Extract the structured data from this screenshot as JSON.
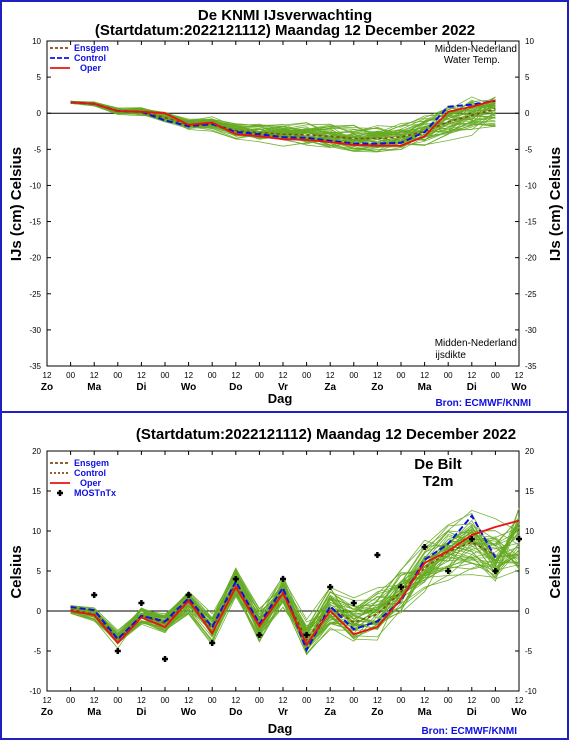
{
  "colors": {
    "frame": "#2020c0",
    "ensemble_member": "#66aa22",
    "ensgem": "#8b4513",
    "control": "#1010e0",
    "oper": "#ee1111",
    "mos": "#000000",
    "legend_text": "#1010e0",
    "source_text": "#1010e0"
  },
  "chart_data": [
    {
      "type": "line",
      "title": "De KNMI IJsverwachting",
      "subtitle": "(Startdatum:2022121112)  Maandag 12 December 2022",
      "xlabel": "Dag",
      "ylabel_left": "IJs (cm)  Celsius",
      "ylabel_right": "IJs (cm)  Celsius",
      "ylim": [
        -35,
        10
      ],
      "yticks": [
        10,
        5,
        0,
        -5,
        -10,
        -15,
        -20,
        -25,
        -30,
        -35
      ],
      "x_hours": [
        0,
        12,
        24,
        36,
        48,
        60,
        72,
        84,
        96,
        108,
        120,
        132,
        144,
        156,
        168,
        180,
        192,
        204,
        216,
        228
      ],
      "xtick_labels": [
        "12",
        "00",
        "12",
        "00",
        "12",
        "00",
        "12",
        "00",
        "12",
        "00",
        "12",
        "00",
        "12",
        "00",
        "12",
        "00",
        "12",
        "00",
        "12",
        "00",
        "12"
      ],
      "day_labels": [
        "Zo",
        "Ma",
        "Di",
        "Wo",
        "Do",
        "Vr",
        "Za",
        "Zo",
        "Ma",
        "Di",
        "Wo"
      ],
      "annotations": [
        "Midden-Nederland",
        "Water Temp.",
        "Midden-Nederland",
        "ijsdikte"
      ],
      "source": "Bron: ECMWF/KNMI",
      "legend": [
        "Ensgem",
        "Control",
        "Oper"
      ],
      "series": [
        {
          "name": "Ensgem",
          "x": [
            12,
            24,
            36,
            48,
            60,
            72,
            84,
            96,
            108,
            120,
            132,
            144,
            156,
            168,
            180,
            192,
            204,
            216,
            228
          ],
          "values": [
            1.5,
            1.3,
            0.3,
            0.2,
            -0.6,
            -1.6,
            -1.5,
            -2.4,
            -2.7,
            -2.9,
            -3.0,
            -3.2,
            -3.5,
            -3.5,
            -3.3,
            -2.5,
            -1.2,
            -0.3,
            0.6
          ]
        },
        {
          "name": "Control",
          "x": [
            12,
            24,
            36,
            48,
            60,
            72,
            84,
            96,
            108,
            120,
            132,
            144,
            156,
            168,
            180,
            192,
            204,
            216,
            228
          ],
          "values": [
            1.5,
            1.3,
            0.3,
            0.2,
            -1.0,
            -1.8,
            -1.5,
            -2.6,
            -2.9,
            -3.3,
            -3.4,
            -3.8,
            -4.2,
            -4.2,
            -4.1,
            -2.6,
            0.9,
            1.2,
            1.7
          ]
        },
        {
          "name": "Oper",
          "x": [
            12,
            24,
            36,
            48,
            60,
            72,
            84,
            96,
            108,
            120,
            132,
            144,
            156,
            168,
            180,
            192,
            204,
            216,
            228
          ],
          "values": [
            1.5,
            1.3,
            0.3,
            0.2,
            0.0,
            -1.6,
            -1.3,
            -2.9,
            -3.2,
            -3.6,
            -3.7,
            -4.0,
            -4.4,
            -4.5,
            -4.5,
            -3.2,
            0.2,
            0.9,
            1.8
          ]
        }
      ]
    },
    {
      "type": "line",
      "title": "(Startdatum:2022121112)  Maandag 12 December 2022",
      "xlabel": "Dag",
      "ylabel_left": "Celsius",
      "ylabel_right": "Celsius",
      "ylim": [
        -10,
        20
      ],
      "yticks": [
        20,
        15,
        10,
        5,
        0,
        -5,
        -10
      ],
      "xtick_labels": [
        "12",
        "00",
        "12",
        "00",
        "12",
        "00",
        "12",
        "00",
        "12",
        "00",
        "12",
        "00",
        "12",
        "00",
        "12",
        "00",
        "12",
        "00",
        "12",
        "00",
        "12"
      ],
      "day_labels": [
        "Zo",
        "Ma",
        "Di",
        "Wo",
        "Do",
        "Vr",
        "Za",
        "Zo",
        "Ma",
        "Di",
        "Wo"
      ],
      "annotations": [
        "De Bilt",
        "T2m"
      ],
      "source": "Bron: ECMWF/KNMI",
      "legend": [
        "Ensgem",
        "Control",
        "Oper",
        "MOSTnTx"
      ],
      "series": [
        {
          "name": "Ensgem",
          "x": [
            12,
            24,
            36,
            48,
            60,
            72,
            84,
            96,
            108,
            120,
            132,
            144,
            156,
            168,
            180,
            192,
            204,
            216,
            228
          ],
          "values": [
            0.2,
            -0.4,
            -3.6,
            -0.6,
            -1.5,
            1.2,
            -2.2,
            3.5,
            -1.8,
            2.4,
            -3.6,
            0.4,
            -1.4,
            -0.4,
            2.4,
            5.4,
            7.4,
            8.6,
            7.0
          ]
        },
        {
          "name": "Control",
          "x": [
            12,
            24,
            36,
            48,
            60,
            72,
            84,
            96,
            108,
            120,
            132,
            144,
            156,
            168,
            180,
            192,
            204,
            216,
            228
          ],
          "values": [
            0.5,
            0.1,
            -3.5,
            -0.6,
            -1.3,
            1.6,
            -2.0,
            3.7,
            -1.6,
            2.9,
            -4.9,
            0.6,
            -2.3,
            -1.3,
            1.3,
            6.4,
            8.4,
            11.9,
            6.7
          ]
        },
        {
          "name": "Oper",
          "x": [
            12,
            24,
            36,
            48,
            60,
            72,
            84,
            96,
            108,
            120,
            132,
            144,
            156,
            168,
            180,
            192,
            204,
            216,
            228,
            240
          ],
          "values": [
            0.0,
            -0.5,
            -4.0,
            -0.8,
            -2.0,
            1.3,
            -2.8,
            3.0,
            -1.9,
            2.2,
            -4.2,
            0.0,
            -2.9,
            -2.0,
            1.5,
            6.0,
            7.5,
            9.5,
            10.5,
            11.3
          ]
        },
        {
          "name": "MOSTnTx",
          "x": [
            24,
            36,
            48,
            60,
            72,
            84,
            96,
            108,
            120,
            132,
            144,
            156,
            168,
            180,
            192,
            204,
            216,
            228,
            240
          ],
          "values": [
            2.0,
            -5.0,
            1.0,
            -6.0,
            2.0,
            -4.0,
            4.0,
            -3.0,
            4.0,
            -3.0,
            3.0,
            1.0,
            7.0,
            3.0,
            8.0,
            5.0,
            9.0,
            5.0,
            9.0
          ]
        }
      ]
    }
  ]
}
